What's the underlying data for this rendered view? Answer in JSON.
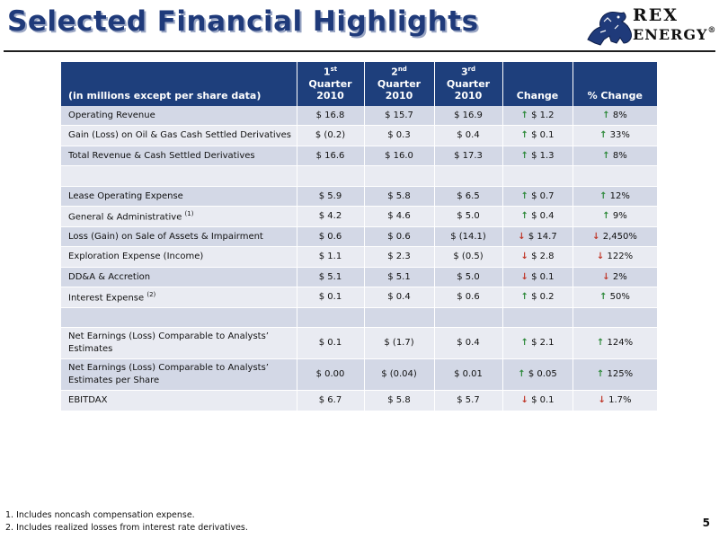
{
  "title": "Selected Financial Highlights",
  "logo": {
    "line1": "REX",
    "line2": "ENERGY",
    "mark": "®"
  },
  "table": {
    "header": {
      "label": "(in millions except per share data)",
      "q1": {
        "num": "1",
        "sup": "st",
        "word": "Quarter",
        "year": "2010"
      },
      "q2": {
        "num": "2",
        "sup": "nd",
        "word": "Quarter",
        "year": "2010"
      },
      "q3": {
        "num": "3",
        "sup": "rd",
        "word": "Quarter",
        "year": "2010"
      },
      "change": "Change",
      "pct_change": "% Change"
    },
    "rows": [
      {
        "label": "Operating Revenue",
        "sup": "",
        "q1": "$ 16.8",
        "q2": "$ 15.7",
        "q3": "$ 16.9",
        "chg_dir": "up",
        "chg": "$ 1.2",
        "pct_dir": "up",
        "pct": "8%"
      },
      {
        "label": "Gain (Loss) on Oil & Gas Cash Settled Derivatives",
        "sup": "",
        "q1": "$ (0.2)",
        "q2": "$ 0.3",
        "q3": "$ 0.4",
        "chg_dir": "up",
        "chg": "$ 0.1",
        "pct_dir": "up",
        "pct": "33%"
      },
      {
        "label": "Total Revenue & Cash Settled Derivatives",
        "sup": "",
        "q1": "$ 16.6",
        "q2": "$ 16.0",
        "q3": "$ 17.3",
        "chg_dir": "up",
        "chg": "$ 1.3",
        "pct_dir": "up",
        "pct": "8%"
      },
      {
        "label": "",
        "sup": "",
        "q1": "",
        "q2": "",
        "q3": "",
        "chg_dir": "",
        "chg": "",
        "pct_dir": "",
        "pct": ""
      },
      {
        "label": "Lease Operating Expense",
        "sup": "",
        "q1": "$ 5.9",
        "q2": "$ 5.8",
        "q3": "$ 6.5",
        "chg_dir": "up",
        "chg": "$ 0.7",
        "pct_dir": "up",
        "pct": "12%"
      },
      {
        "label": "General & Administrative",
        "sup": "(1)",
        "q1": "$ 4.2",
        "q2": "$ 4.6",
        "q3": "$ 5.0",
        "chg_dir": "up",
        "chg": "$ 0.4",
        "pct_dir": "up",
        "pct": "9%"
      },
      {
        "label": "Loss (Gain) on Sale of Assets & Impairment",
        "sup": "",
        "q1": "$ 0.6",
        "q2": "$ 0.6",
        "q3": "$ (14.1)",
        "chg_dir": "down",
        "chg": "$ 14.7",
        "pct_dir": "down",
        "pct": "2,450%"
      },
      {
        "label": "Exploration Expense (Income)",
        "sup": "",
        "q1": "$ 1.1",
        "q2": "$ 2.3",
        "q3": "$ (0.5)",
        "chg_dir": "down",
        "chg": "$ 2.8",
        "pct_dir": "down",
        "pct": "122%"
      },
      {
        "label": "DD&A & Accretion",
        "sup": "",
        "q1": "$ 5.1",
        "q2": "$ 5.1",
        "q3": "$ 5.0",
        "chg_dir": "down",
        "chg": "$ 0.1",
        "pct_dir": "down",
        "pct": "2%"
      },
      {
        "label": "Interest Expense",
        "sup": "(2)",
        "q1": "$ 0.1",
        "q2": "$ 0.4",
        "q3": "$ 0.6",
        "chg_dir": "up",
        "chg": "$ 0.2",
        "pct_dir": "up",
        "pct": "50%"
      },
      {
        "label": "",
        "sup": "",
        "q1": "",
        "q2": "",
        "q3": "",
        "chg_dir": "",
        "chg": "",
        "pct_dir": "",
        "pct": ""
      },
      {
        "label": "Net Earnings (Loss) Comparable to Analysts’ Estimates",
        "sup": "",
        "q1": "$ 0.1",
        "q2": "$ (1.7)",
        "q3": "$ 0.4",
        "chg_dir": "up",
        "chg": "$ 2.1",
        "pct_dir": "up",
        "pct": "124%"
      },
      {
        "label": "Net  Earnings (Loss) Comparable to Analysts’ Estimates per Share",
        "sup": "",
        "q1": "$ 0.00",
        "q2": "$ (0.04)",
        "q3": "$ 0.01",
        "chg_dir": "up",
        "chg": "$ 0.05",
        "pct_dir": "up",
        "pct": "125%"
      },
      {
        "label": "EBITDAX",
        "sup": "",
        "q1": "$ 6.7",
        "q2": "$ 5.8",
        "q3": "$ 5.7",
        "chg_dir": "down",
        "chg": "$ 0.1",
        "pct_dir": "down",
        "pct": "1.7%"
      }
    ]
  },
  "arrows": {
    "up": "↑",
    "down": "↓"
  },
  "colors": {
    "header_bg": "#1e3f7c",
    "up": "#2f8a3c",
    "down": "#c0392b",
    "row_odd": "#d3d8e6",
    "row_even": "#e9ebf2"
  },
  "footnotes": [
    "1. Includes noncash compensation expense.",
    "2. Includes realized losses from interest rate derivatives."
  ],
  "page_number": "5"
}
